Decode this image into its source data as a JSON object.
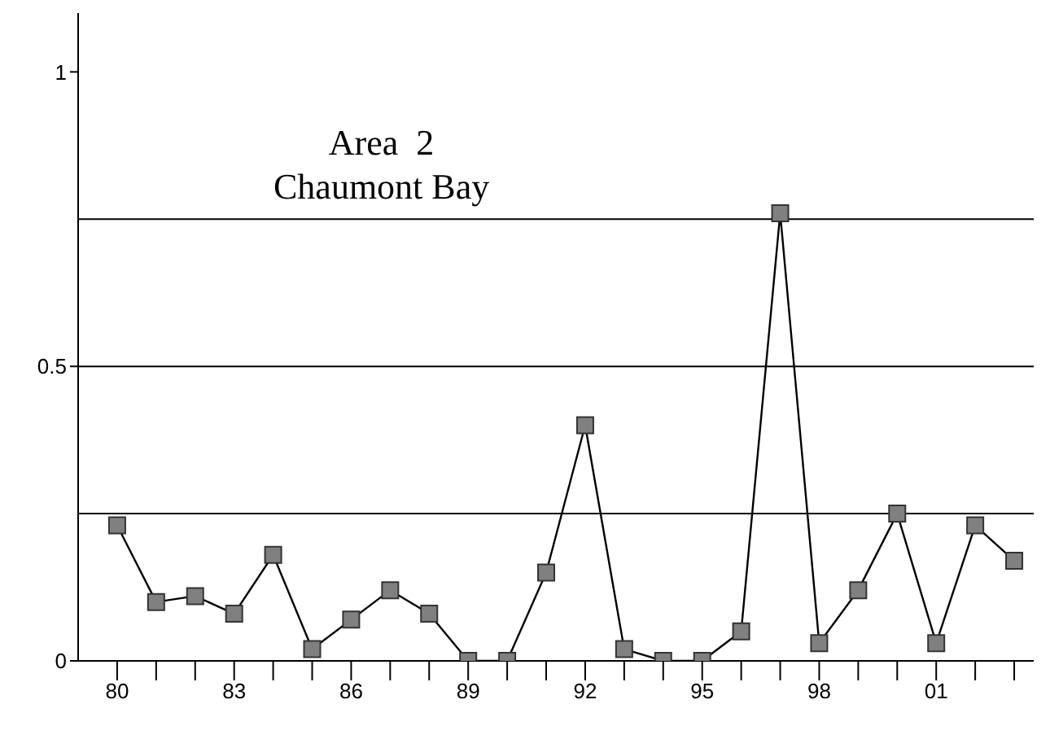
{
  "chart_data": {
    "type": "line",
    "title": "Area  2",
    "subtitle": "Chaumont Bay",
    "x": [
      1980,
      1981,
      1982,
      1983,
      1984,
      1985,
      1986,
      1987,
      1988,
      1989,
      1990,
      1991,
      1992,
      1993,
      1994,
      1995,
      1996,
      1997,
      1998,
      1999,
      2000,
      2001,
      2002,
      2003
    ],
    "series": [
      {
        "color": "#000000",
        "values": [
          0.23,
          0.1,
          0.11,
          0.08,
          0.18,
          0.02,
          0.07,
          0.12,
          0.08,
          0,
          0,
          0.15,
          0.4,
          0.02,
          0,
          0,
          0.05,
          0.76,
          0.03,
          0.12,
          0.25,
          0.03,
          0.23,
          0.17
        ]
      }
    ],
    "marker": "square",
    "line_style": "solid",
    "grid": false,
    "legend": false,
    "xlim": [
      1979,
      2003.5
    ],
    "xticks": [
      {
        "value": 1980,
        "label": "80"
      },
      {
        "value": 1981,
        "label": null
      },
      {
        "value": 1982,
        "label": null
      },
      {
        "value": 1983,
        "label": "83"
      },
      {
        "value": 1984,
        "label": null
      },
      {
        "value": 1985,
        "label": null
      },
      {
        "value": 1986,
        "label": "86"
      },
      {
        "value": 1987,
        "label": null
      },
      {
        "value": 1988,
        "label": null
      },
      {
        "value": 1989,
        "label": "89"
      },
      {
        "value": 1990,
        "label": null
      },
      {
        "value": 1991,
        "label": null
      },
      {
        "value": 1992,
        "label": "92"
      },
      {
        "value": 1993,
        "label": null
      },
      {
        "value": 1994,
        "label": null
      },
      {
        "value": 1995,
        "label": "95"
      },
      {
        "value": 1996,
        "label": null
      },
      {
        "value": 1997,
        "label": null
      },
      {
        "value": 1998,
        "label": "98"
      },
      {
        "value": 1999,
        "label": null
      },
      {
        "value": 2000,
        "label": null
      },
      {
        "value": 2001,
        "label": "01"
      },
      {
        "value": 2002,
        "label": null
      },
      {
        "value": 2003,
        "label": null
      }
    ],
    "ylim": [
      0,
      1.1
    ],
    "yticks": [
      0,
      0.5,
      1
    ],
    "ref_lines": [
      {
        "axis": "y",
        "value": 0.25,
        "label": null
      },
      {
        "axis": "y",
        "value": 0.5,
        "label": null
      },
      {
        "axis": "y",
        "value": 0.75,
        "label": null
      }
    ]
  }
}
